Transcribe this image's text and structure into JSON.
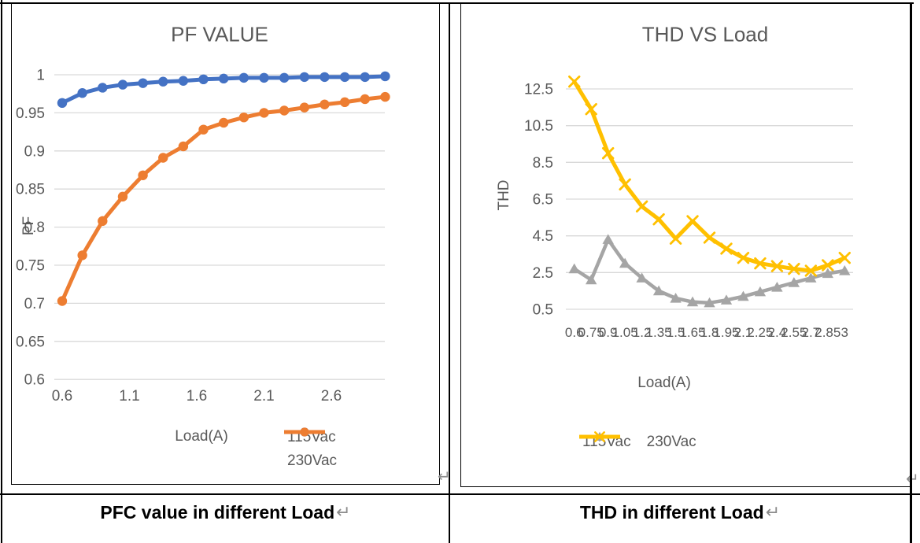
{
  "captions": {
    "left": "PFC value in different Load",
    "right": "THD in different Load",
    "return_mark": "↵"
  },
  "colors": {
    "accent_blue": "#4472C4",
    "accent_orange": "#ED7D31",
    "accent_gray": "#A5A5A5",
    "accent_yellow": "#FFC000",
    "chart_text": "#595959",
    "gridline": "#D9D9D9",
    "table_border": "#000000"
  },
  "chart_data": [
    {
      "type": "line",
      "title": "PF VALUE",
      "xlabel": "Load(A)",
      "ylabel": "PF",
      "x": [
        0.6,
        0.75,
        0.9,
        1.05,
        1.2,
        1.35,
        1.5,
        1.65,
        1.8,
        1.95,
        2.1,
        2.25,
        2.4,
        2.55,
        2.7,
        2.85,
        3
      ],
      "series": [
        {
          "name": "115Vac",
          "color": "#4472C4",
          "marker": "circle",
          "values": [
            0.963,
            0.976,
            0.983,
            0.987,
            0.989,
            0.991,
            0.992,
            0.994,
            0.995,
            0.996,
            0.996,
            0.996,
            0.997,
            0.997,
            0.997,
            0.997,
            0.998
          ]
        },
        {
          "name": "230Vac",
          "color": "#ED7D31",
          "marker": "circle",
          "values": [
            0.703,
            0.763,
            0.808,
            0.84,
            0.868,
            0.891,
            0.906,
            0.928,
            0.937,
            0.944,
            0.95,
            0.953,
            0.957,
            0.961,
            0.964,
            0.968,
            0.971
          ]
        }
      ],
      "x_ticks": [
        "0.6",
        "1.1",
        "1.6",
        "2.1",
        "2.6"
      ],
      "y_ticks": [
        "1",
        "0.95",
        "0.9",
        "0.85",
        "0.8",
        "0.75",
        "0.7",
        "0.65",
        "0.6"
      ],
      "xlim": [
        0.6,
        3
      ],
      "ylim": [
        0.6,
        1
      ],
      "grid": true,
      "legend_position": "bottom-right"
    },
    {
      "type": "line",
      "title": "THD VS Load",
      "xlabel": "Load(A)",
      "ylabel": "THD",
      "categories": [
        "0.6",
        "0.75",
        "0.9",
        "1.05",
        "1.2",
        "1.35",
        "1.5",
        "1.65",
        "1.8",
        "1.95",
        "2.1",
        "2.25",
        "2.4",
        "2.55",
        "2.7",
        "2.85",
        "3"
      ],
      "series": [
        {
          "name": "115Vac",
          "color": "#A5A5A5",
          "marker": "triangle",
          "values": [
            2.7,
            2.1,
            4.3,
            3.0,
            2.2,
            1.5,
            1.1,
            0.9,
            0.85,
            1.0,
            1.2,
            1.45,
            1.7,
            1.95,
            2.2,
            2.45,
            2.6
          ]
        },
        {
          "name": "230Vac",
          "color": "#FFC000",
          "marker": "x",
          "values": [
            12.9,
            11.4,
            9.0,
            7.3,
            6.1,
            5.4,
            4.35,
            5.3,
            4.4,
            3.8,
            3.3,
            3.0,
            2.85,
            2.7,
            2.6,
            2.9,
            3.3
          ]
        }
      ],
      "y_ticks": [
        "12.5",
        "10.5",
        "8.5",
        "6.5",
        "4.5",
        "2.5",
        "0.5"
      ],
      "ylim": [
        0.5,
        13.4
      ],
      "grid": true,
      "legend_position": "bottom"
    }
  ]
}
